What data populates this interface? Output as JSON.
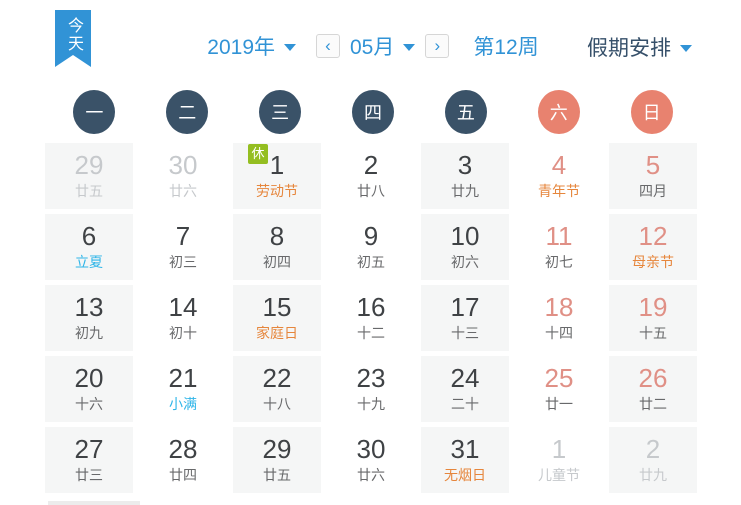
{
  "toolbar": {
    "today": "今天",
    "year": "2019年",
    "month": "05月",
    "week_label": "第12周",
    "holiday_label": "假期安排",
    "prev_icon": "‹",
    "next_icon": "›"
  },
  "weekdays": [
    {
      "label": "一",
      "weekend": false
    },
    {
      "label": "二",
      "weekend": false
    },
    {
      "label": "三",
      "weekend": false
    },
    {
      "label": "四",
      "weekend": false
    },
    {
      "label": "五",
      "weekend": false
    },
    {
      "label": "六",
      "weekend": true
    },
    {
      "label": "日",
      "weekend": true
    }
  ],
  "days": [
    {
      "date": "29",
      "sub": "廿五",
      "date_style": "dim",
      "sub_style": "dim"
    },
    {
      "date": "30",
      "sub": "廿六",
      "date_style": "dim",
      "sub_style": "dim"
    },
    {
      "date": "1",
      "sub": "劳动节",
      "date_style": "normal",
      "sub_style": "festival",
      "badge": "休"
    },
    {
      "date": "2",
      "sub": "廿八",
      "date_style": "normal",
      "sub_style": "lunar"
    },
    {
      "date": "3",
      "sub": "廿九",
      "date_style": "normal",
      "sub_style": "lunar"
    },
    {
      "date": "4",
      "sub": "青年节",
      "date_style": "weekend",
      "sub_style": "festival"
    },
    {
      "date": "5",
      "sub": "四月",
      "date_style": "weekend",
      "sub_style": "lunar"
    },
    {
      "date": "6",
      "sub": "立夏",
      "date_style": "normal",
      "sub_style": "solar"
    },
    {
      "date": "7",
      "sub": "初三",
      "date_style": "normal",
      "sub_style": "lunar"
    },
    {
      "date": "8",
      "sub": "初四",
      "date_style": "normal",
      "sub_style": "lunar"
    },
    {
      "date": "9",
      "sub": "初五",
      "date_style": "normal",
      "sub_style": "lunar"
    },
    {
      "date": "10",
      "sub": "初六",
      "date_style": "normal",
      "sub_style": "lunar"
    },
    {
      "date": "11",
      "sub": "初七",
      "date_style": "weekend",
      "sub_style": "lunar"
    },
    {
      "date": "12",
      "sub": "母亲节",
      "date_style": "weekend",
      "sub_style": "festival"
    },
    {
      "date": "13",
      "sub": "初九",
      "date_style": "normal",
      "sub_style": "lunar"
    },
    {
      "date": "14",
      "sub": "初十",
      "date_style": "normal",
      "sub_style": "lunar"
    },
    {
      "date": "15",
      "sub": "家庭日",
      "date_style": "normal",
      "sub_style": "festival"
    },
    {
      "date": "16",
      "sub": "十二",
      "date_style": "normal",
      "sub_style": "lunar"
    },
    {
      "date": "17",
      "sub": "十三",
      "date_style": "normal",
      "sub_style": "lunar"
    },
    {
      "date": "18",
      "sub": "十四",
      "date_style": "weekend",
      "sub_style": "lunar"
    },
    {
      "date": "19",
      "sub": "十五",
      "date_style": "weekend",
      "sub_style": "lunar"
    },
    {
      "date": "20",
      "sub": "十六",
      "date_style": "normal",
      "sub_style": "lunar"
    },
    {
      "date": "21",
      "sub": "小满",
      "date_style": "normal",
      "sub_style": "solar"
    },
    {
      "date": "22",
      "sub": "十八",
      "date_style": "normal",
      "sub_style": "lunar"
    },
    {
      "date": "23",
      "sub": "十九",
      "date_style": "normal",
      "sub_style": "lunar"
    },
    {
      "date": "24",
      "sub": "二十",
      "date_style": "normal",
      "sub_style": "lunar"
    },
    {
      "date": "25",
      "sub": "廿一",
      "date_style": "weekend",
      "sub_style": "lunar"
    },
    {
      "date": "26",
      "sub": "廿二",
      "date_style": "weekend",
      "sub_style": "lunar"
    },
    {
      "date": "27",
      "sub": "廿三",
      "date_style": "normal",
      "sub_style": "lunar"
    },
    {
      "date": "28",
      "sub": "廿四",
      "date_style": "normal",
      "sub_style": "lunar"
    },
    {
      "date": "29",
      "sub": "廿五",
      "date_style": "normal",
      "sub_style": "lunar"
    },
    {
      "date": "30",
      "sub": "廿六",
      "date_style": "normal",
      "sub_style": "lunar"
    },
    {
      "date": "31",
      "sub": "无烟日",
      "date_style": "normal",
      "sub_style": "festival"
    },
    {
      "date": "1",
      "sub": "儿童节",
      "date_style": "dim",
      "sub_style": "dim"
    },
    {
      "date": "2",
      "sub": "廿九",
      "date_style": "dim",
      "sub_style": "dim"
    }
  ],
  "colors": {
    "accent_blue": "#3193d6",
    "weekday_circle": "#3a5268",
    "weekend_circle": "#e8826f",
    "weekend_date": "#e09086",
    "festival_text": "#e6863c",
    "solar_term_text": "#2eb5e8",
    "rest_badge_bg": "#94be21",
    "dim_text": "#c6c9cc"
  }
}
